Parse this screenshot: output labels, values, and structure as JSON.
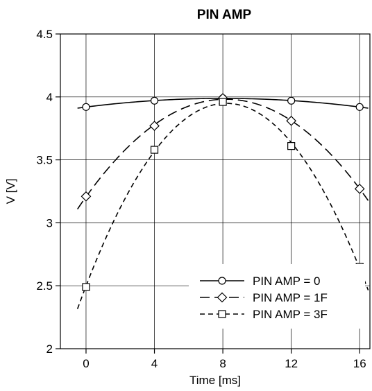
{
  "chart_data": {
    "type": "line",
    "title": "PIN AMP",
    "xlabel": "Time [ms]",
    "ylabel": "V [V]",
    "xlim": [
      -1.5,
      16.6
    ],
    "ylim": [
      2,
      4.5
    ],
    "xticks": [
      0,
      4,
      8,
      12,
      16
    ],
    "xtick_labels": [
      "0",
      "4",
      "8",
      "12",
      "16"
    ],
    "yticks": [
      2,
      2.5,
      3,
      3.5,
      4,
      4.5
    ],
    "ytick_labels": [
      "2",
      "2.5",
      "3",
      "3.5",
      "4",
      "4.5"
    ],
    "grid": true,
    "legend_position": "bottom-right",
    "x": [
      0,
      4,
      8,
      12,
      16
    ],
    "series": [
      {
        "name": "PIN AMP = 0",
        "marker": "circle",
        "dash": "solid",
        "values": [
          3.92,
          3.97,
          3.99,
          3.97,
          3.92
        ],
        "curve_x_range": [
          -0.5,
          16.5
        ]
      },
      {
        "name": "PIN AMP = 1F",
        "marker": "diamond",
        "dash": "long-dash",
        "values": [
          3.21,
          3.77,
          3.99,
          3.81,
          3.27
        ],
        "curve_x_range": [
          -0.5,
          16.5
        ]
      },
      {
        "name": "PIN AMP = 3F",
        "marker": "square",
        "dash": "short-dash",
        "values": [
          2.49,
          3.58,
          3.96,
          3.61,
          2.65
        ],
        "curve_x_range": [
          -0.5,
          16.5
        ]
      }
    ]
  }
}
